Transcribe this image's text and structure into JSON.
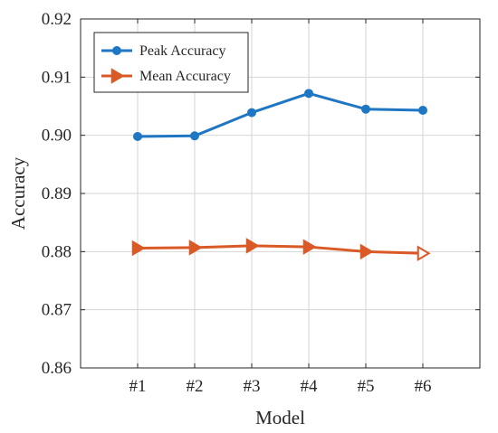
{
  "chart_data": {
    "type": "line",
    "title": "",
    "xlabel": "Model",
    "ylabel": "Accuracy",
    "categories": [
      "#1",
      "#2",
      "#3",
      "#4",
      "#5",
      "#6"
    ],
    "ylim": [
      0.86,
      0.92
    ],
    "yticks": [
      "0.86",
      "0.87",
      "0.88",
      "0.89",
      "0.90",
      "0.91",
      "0.92"
    ],
    "grid": true,
    "legend_position": "top-left",
    "series": [
      {
        "name": "Peak Accuracy",
        "values": [
          0.8998,
          0.8999,
          0.9039,
          0.9072,
          0.9045,
          0.9043
        ],
        "color": "#1f77c4",
        "marker": "circle"
      },
      {
        "name": "Mean Accuracy",
        "values": [
          0.8806,
          0.8807,
          0.881,
          0.8808,
          0.88,
          0.8797
        ],
        "color": "#d95a26",
        "marker": "triangle-right"
      }
    ]
  }
}
